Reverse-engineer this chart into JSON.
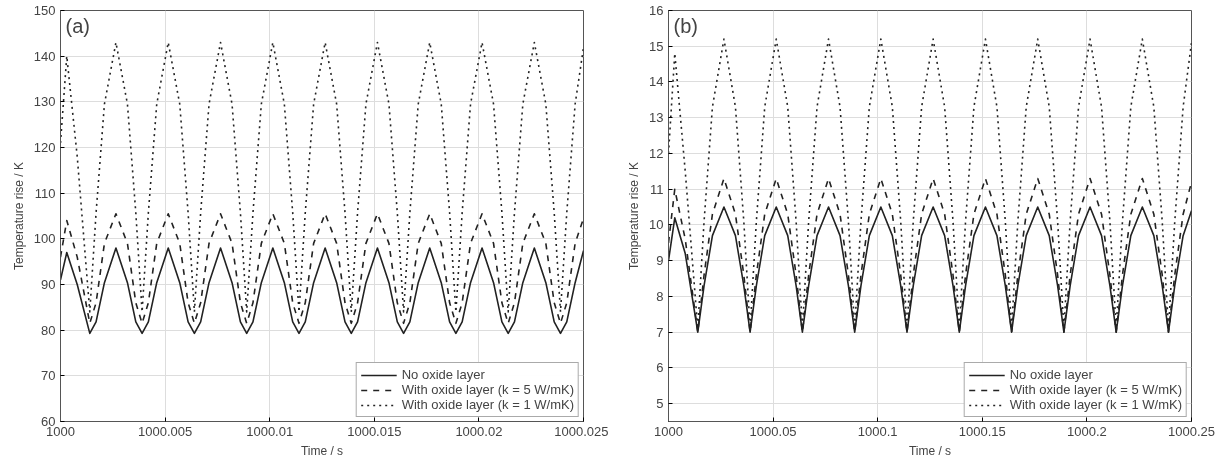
{
  "chart_data": [
    {
      "type": "line",
      "xlabel": "Time / s",
      "ylabel": "Temperature rise / K",
      "annotations": [
        "(a)"
      ],
      "x": [
        1000,
        1000.0003,
        1000.0008,
        1000.0014,
        1000.0017,
        1000.0021,
        1000.00265,
        1000.0032,
        1000.0036,
        1000.0039,
        1000.0042,
        1000.0046,
        1000.00515,
        1000.0057,
        1000.0061,
        1000.0064,
        1000.0067,
        1000.0071,
        1000.00765,
        1000.0082,
        1000.0086,
        1000.0089,
        1000.0092,
        1000.0096,
        1000.01015,
        1000.0107,
        1000.0111,
        1000.0114,
        1000.0117,
        1000.0121,
        1000.01265,
        1000.0132,
        1000.0136,
        1000.0139,
        1000.0142,
        1000.0146,
        1000.01515,
        1000.0157,
        1000.0161,
        1000.0164,
        1000.0167,
        1000.0171,
        1000.01765,
        1000.0182,
        1000.0186,
        1000.0189,
        1000.0192,
        1000.0196,
        1000.02015,
        1000.0207,
        1000.0211,
        1000.0214,
        1000.0217,
        1000.0221,
        1000.02265,
        1000.0232,
        1000.0236,
        1000.0239,
        1000.0242,
        1000.0246,
        1000.025
      ],
      "series": [
        {
          "name": "No oxide layer",
          "color": "#222222",
          "line_style": "solid",
          "values": [
            91,
            97,
            90,
            79.3,
            81.8,
            90.4,
            98,
            90.4,
            81.8,
            79.3,
            81.8,
            90.4,
            98,
            90.4,
            81.8,
            79.3,
            81.8,
            90.4,
            98,
            90.4,
            81.8,
            79.3,
            81.8,
            90.4,
            98,
            90.4,
            81.8,
            79.3,
            81.8,
            90.4,
            98,
            90.4,
            81.8,
            79.3,
            81.8,
            90.4,
            98,
            90.4,
            81.8,
            79.3,
            81.8,
            90.4,
            98,
            90.4,
            81.8,
            79.3,
            81.8,
            90.4,
            98,
            90.4,
            81.8,
            79.3,
            81.8,
            90.4,
            98,
            90.4,
            81.8,
            79.3,
            81.8,
            90.4,
            97.4
          ]
        },
        {
          "name": "With oxide layer (k = 5 W/mK)",
          "color": "#222222",
          "line_style": "dashed",
          "values": [
            96,
            104,
            96,
            81.5,
            86,
            99,
            105.5,
            99,
            86,
            81.5,
            86,
            99,
            105.5,
            99,
            86,
            81.5,
            86,
            99,
            105.5,
            99,
            86,
            81.5,
            86,
            99,
            105.5,
            99,
            86,
            81.5,
            86,
            99,
            105.5,
            99,
            86,
            81.5,
            86,
            99,
            105.5,
            99,
            86,
            81.5,
            86,
            99,
            105.5,
            99,
            86,
            81.5,
            86,
            99,
            105.5,
            99,
            86,
            81.5,
            86,
            99,
            105.5,
            99,
            86,
            81.5,
            86,
            99,
            104.5
          ]
        },
        {
          "name": "With oxide layer (k = 1 W/mK)",
          "color": "#222222",
          "line_style": "dotted",
          "values": [
            121,
            140,
            118,
            84,
            105.7,
            129.5,
            143,
            129.5,
            105.7,
            84,
            105.7,
            129.5,
            143,
            129.5,
            105.7,
            84,
            105.7,
            129.5,
            143,
            129.5,
            105.7,
            84,
            105.7,
            129.5,
            143,
            129.5,
            105.7,
            84,
            105.7,
            129.5,
            143,
            129.5,
            105.7,
            84,
            105.7,
            129.5,
            143,
            129.5,
            105.7,
            84,
            105.7,
            129.5,
            143,
            129.5,
            105.7,
            84,
            105.7,
            129.5,
            143,
            129.5,
            105.7,
            84,
            105.7,
            129.5,
            143,
            129.5,
            105.7,
            84,
            105.7,
            129.5,
            141.9
          ]
        }
      ],
      "xlim": [
        1000,
        1000.025
      ],
      "xticks": [
        1000,
        1000.005,
        1000.01,
        1000.015,
        1000.02,
        1000.025
      ],
      "ylim": [
        60,
        150
      ],
      "yticks": [
        60,
        70,
        80,
        90,
        100,
        110,
        120,
        130,
        140,
        150
      ],
      "grid": true,
      "legend": "bottom right"
    },
    {
      "type": "line",
      "xlabel": "Time / s",
      "ylabel": "Temperature rise / K",
      "annotations": [
        "(b)"
      ],
      "x": [
        1000,
        1000.003,
        1000.008,
        1000.014,
        1000.017,
        1000.021,
        1000.0265,
        1000.032,
        1000.036,
        1000.039,
        1000.042,
        1000.046,
        1000.0515,
        1000.057,
        1000.061,
        1000.064,
        1000.067,
        1000.071,
        1000.0765,
        1000.082,
        1000.086,
        1000.089,
        1000.092,
        1000.096,
        1000.1015,
        1000.107,
        1000.111,
        1000.114,
        1000.117,
        1000.121,
        1000.1265,
        1000.132,
        1000.136,
        1000.139,
        1000.142,
        1000.146,
        1000.1515,
        1000.157,
        1000.161,
        1000.164,
        1000.167,
        1000.171,
        1000.1765,
        1000.182,
        1000.186,
        1000.189,
        1000.192,
        1000.196,
        1000.2015,
        1000.207,
        1000.211,
        1000.214,
        1000.217,
        1000.221,
        1000.2265,
        1000.232,
        1000.236,
        1000.239,
        1000.242,
        1000.246,
        1000.25
      ],
      "series": [
        {
          "name": "No oxide layer",
          "color": "#222222",
          "line_style": "solid",
          "values": [
            9,
            10.2,
            9.2,
            7,
            8.3,
            9.7,
            10.5,
            9.7,
            8.3,
            7,
            8.3,
            9.7,
            10.5,
            9.7,
            8.3,
            7,
            8.3,
            9.7,
            10.5,
            9.7,
            8.3,
            7,
            8.3,
            9.7,
            10.5,
            9.7,
            8.3,
            7,
            8.3,
            9.7,
            10.5,
            9.7,
            8.3,
            7,
            8.3,
            9.7,
            10.5,
            9.7,
            8.3,
            7,
            8.3,
            9.7,
            10.5,
            9.7,
            8.3,
            7,
            8.3,
            9.7,
            10.5,
            9.7,
            8.3,
            7,
            8.3,
            9.7,
            10.5,
            9.7,
            8.3,
            7,
            8.3,
            9.7,
            10.4
          ]
        },
        {
          "name": "With oxide layer (k = 5 W/mK)",
          "color": "#222222",
          "line_style": "dashed",
          "values": [
            9.5,
            11,
            9.6,
            7,
            8.6,
            10.3,
            11.3,
            10.3,
            8.6,
            7,
            8.6,
            10.3,
            11.3,
            10.3,
            8.6,
            7,
            8.6,
            10.3,
            11.3,
            10.3,
            8.6,
            7,
            8.6,
            10.3,
            11.3,
            10.3,
            8.6,
            7,
            8.6,
            10.3,
            11.3,
            10.3,
            8.6,
            7,
            8.6,
            10.3,
            11.3,
            10.3,
            8.6,
            7,
            8.6,
            10.3,
            11.3,
            10.3,
            8.6,
            7,
            8.6,
            10.3,
            11.3,
            10.3,
            8.6,
            7,
            8.6,
            10.3,
            11.3,
            10.3,
            8.6,
            7,
            8.6,
            10.3,
            11.2
          ]
        },
        {
          "name": "With oxide layer (k = 1 W/mK)",
          "color": "#222222",
          "line_style": "dotted",
          "values": [
            12,
            14.8,
            11.5,
            7.1,
            10.1,
            13.3,
            15.2,
            13.3,
            10.1,
            7.1,
            10.1,
            13.3,
            15.2,
            13.3,
            10.1,
            7.1,
            10.1,
            13.3,
            15.2,
            13.3,
            10.1,
            7.1,
            10.1,
            13.3,
            15.2,
            13.3,
            10.1,
            7.1,
            10.1,
            13.3,
            15.2,
            13.3,
            10.1,
            7.1,
            10.1,
            13.3,
            15.2,
            13.3,
            10.1,
            7.1,
            10.1,
            13.3,
            15.2,
            13.3,
            10.1,
            7.1,
            10.1,
            13.3,
            15.2,
            13.3,
            10.1,
            7.1,
            10.1,
            13.3,
            15.2,
            13.3,
            10.1,
            7.1,
            10.1,
            13.3,
            15.1
          ]
        }
      ],
      "xlim": [
        1000,
        1000.25
      ],
      "xticks": [
        1000,
        1000.05,
        1000.1,
        1000.15,
        1000.2,
        1000.25
      ],
      "ylim": [
        4.5,
        16
      ],
      "yticks": [
        5,
        6,
        7,
        8,
        9,
        10,
        11,
        12,
        13,
        14,
        15,
        16
      ],
      "grid": true,
      "legend": "bottom right"
    }
  ]
}
